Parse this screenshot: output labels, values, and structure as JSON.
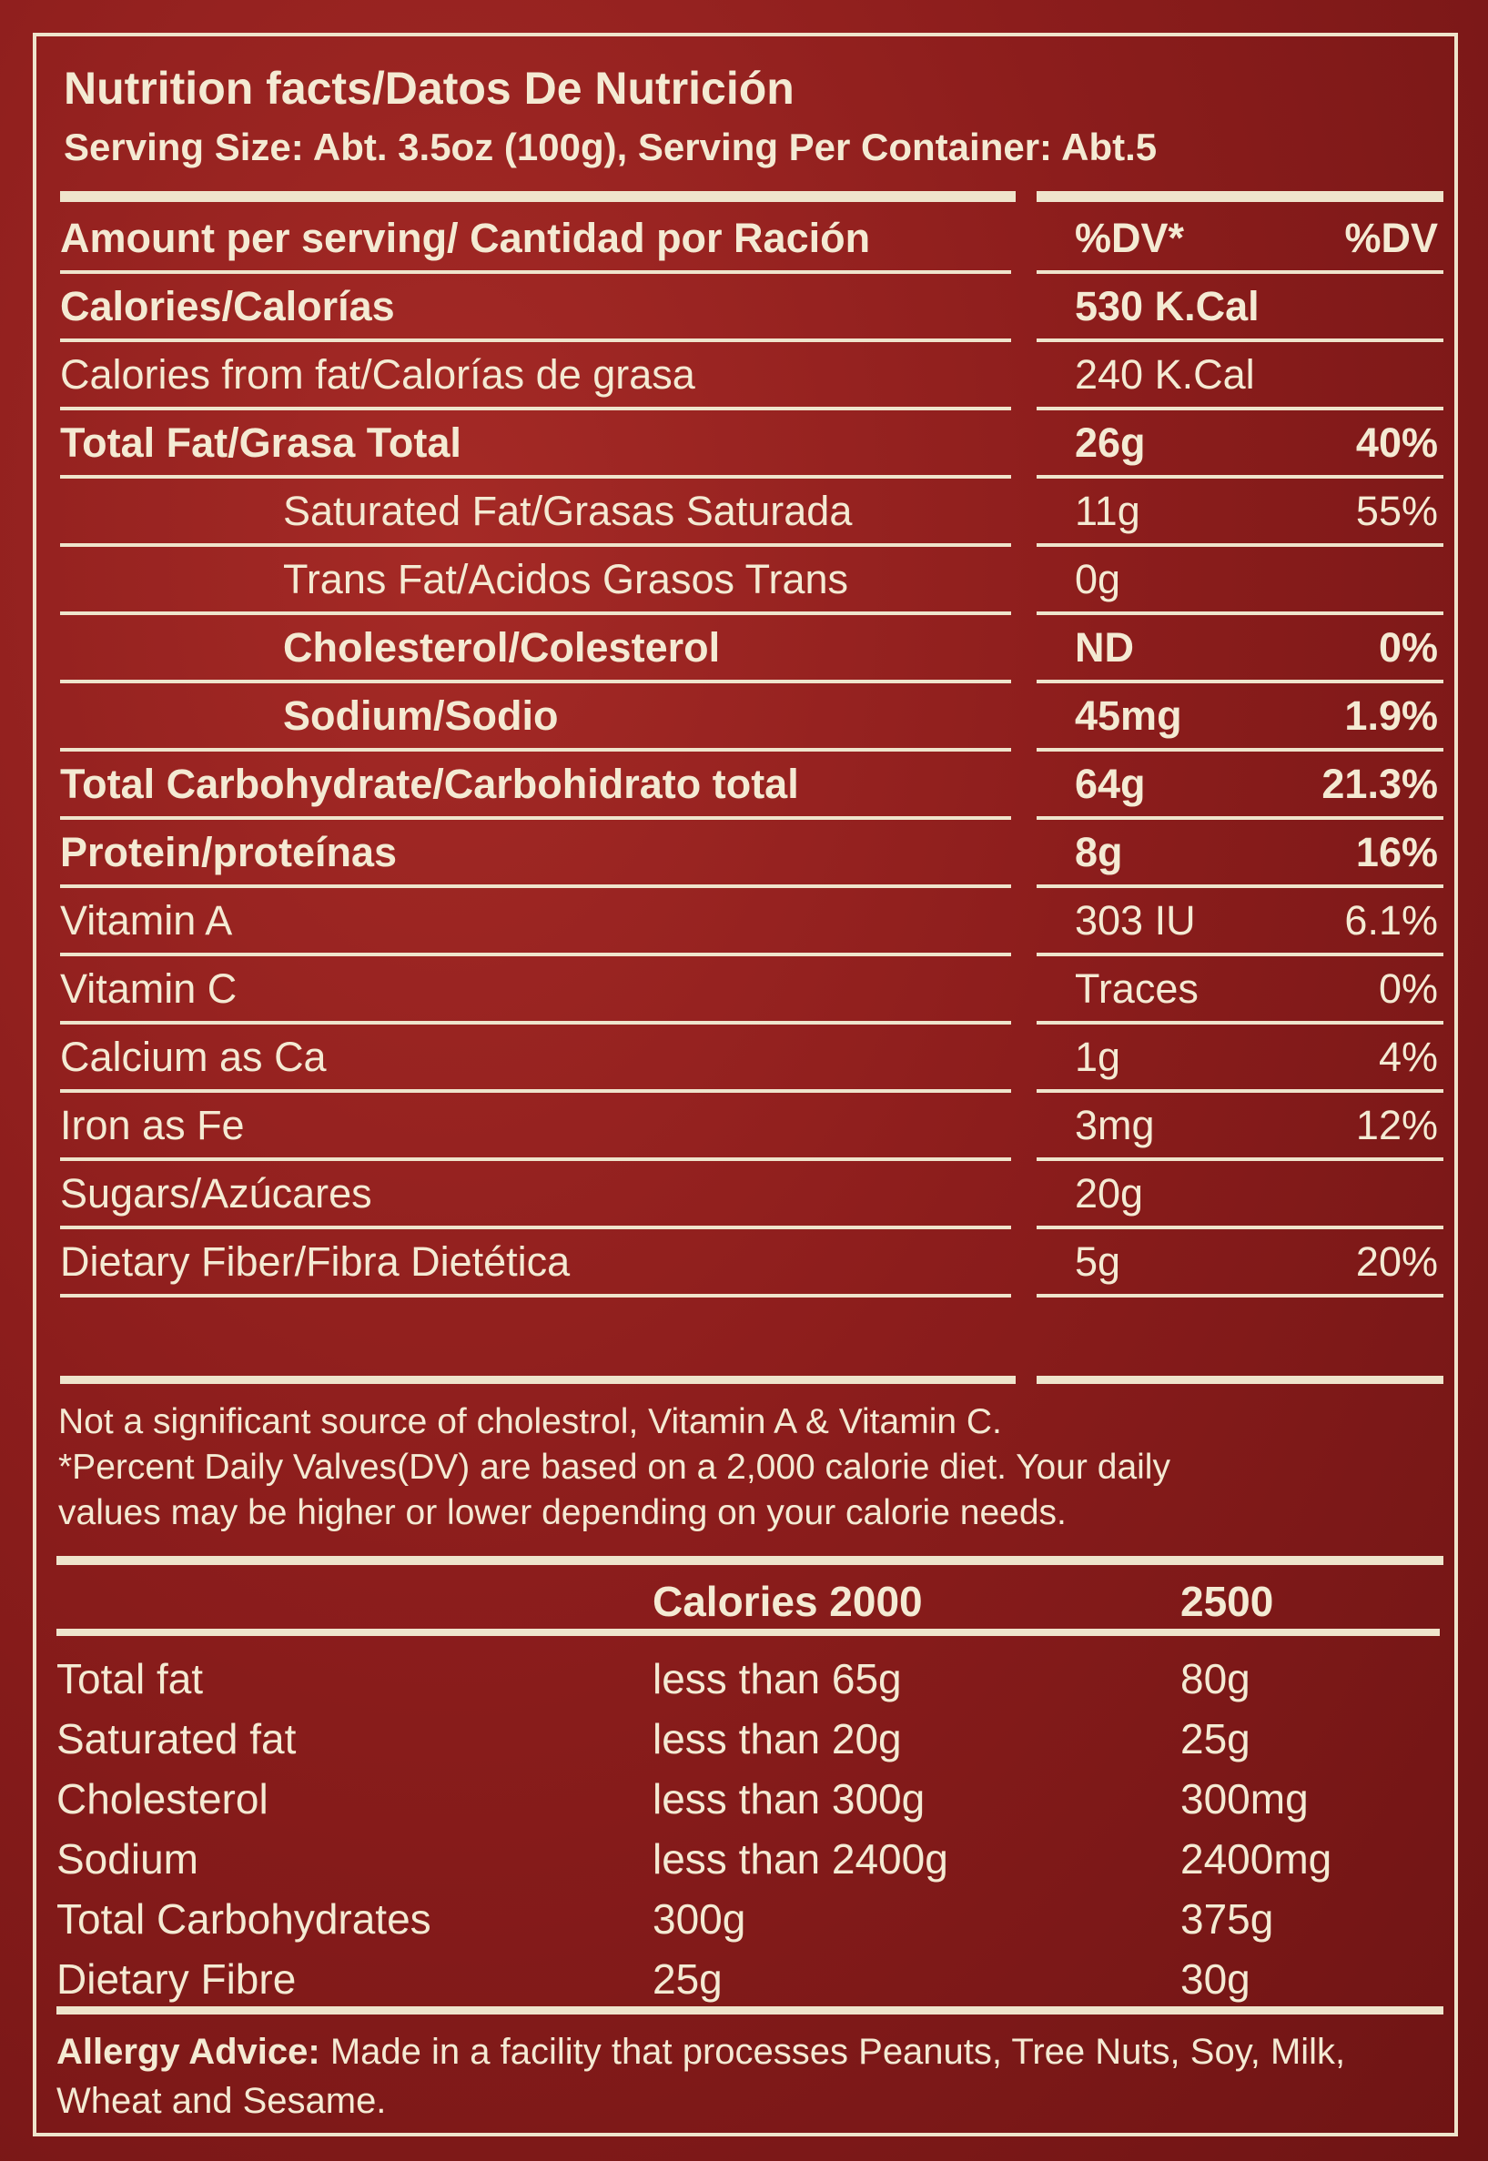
{
  "header": {
    "title": "Nutrition facts/Datos De Nutrición",
    "serving": "Serving Size: Abt. 3.5oz (100g), Serving Per Container: Abt.5"
  },
  "table": {
    "header": [
      "Amount per serving/ Cantidad por Ración",
      "%DV*",
      "%DV"
    ],
    "rows": [
      [
        "Calories/Calorías",
        "530 K.Cal",
        null
      ],
      [
        "Calories from fat/Calorías de grasa",
        "240 K.Cal",
        null
      ],
      [
        "Total Fat/Grasa Total",
        "26g",
        "40%"
      ],
      [
        "Saturated Fat/Grasas Saturada",
        "11g",
        "55%"
      ],
      [
        "Trans Fat/Acidos Grasos Trans",
        "0g",
        null
      ],
      [
        "Cholesterol/Colesterol",
        "ND",
        "0%"
      ],
      [
        "Sodium/Sodio",
        "45mg",
        "1.9%"
      ],
      [
        "Total Carbohydrate/Carbohidrato total",
        "64g",
        "21.3%"
      ],
      [
        "Protein/proteínas",
        "8g",
        "16%"
      ],
      [
        "Vitamin A",
        "303 IU",
        "6.1%"
      ],
      [
        "Vitamin C",
        "Traces",
        "0%"
      ],
      [
        "Calcium as Ca",
        "1g",
        "4%"
      ],
      [
        "Iron as Fe",
        "3mg",
        "12%"
      ],
      [
        "Sugars/Azúcares",
        "20g",
        null
      ],
      [
        "Dietary Fiber/Fibra Dietética",
        "5g",
        "20%"
      ]
    ]
  },
  "notes": [
    "Not a significant source of cholestrol, Vitamin A & Vitamin C.",
    "*Percent Daily Valves(DV) are based on a 2,000 calorie diet. Your daily",
    "values may be higher or lower depending on your calorie needs."
  ],
  "daily": {
    "header": [
      "Calories 2000",
      "2500"
    ],
    "rows": [
      [
        "Total fat",
        "less than 65g",
        "80g"
      ],
      [
        "Saturated fat",
        "less than 20g",
        "25g"
      ],
      [
        "Cholesterol",
        "less than 300g",
        "300mg"
      ],
      [
        "Sodium",
        "less than 2400g",
        "2400mg"
      ],
      [
        "Total Carbohydrates",
        "300g",
        "375g"
      ],
      [
        "Dietary Fibre",
        "25g",
        "30g"
      ]
    ]
  },
  "allergy": {
    "label": "Allergy Advice:",
    "text": "Made in a facility that processes Peanuts, Tree Nuts, Soy, Milk, Wheat and Sesame."
  }
}
